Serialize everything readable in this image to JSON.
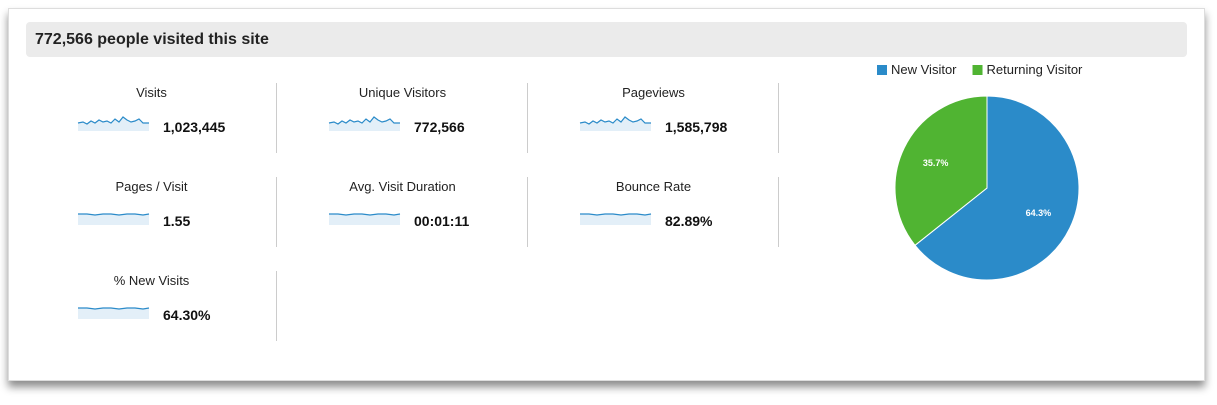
{
  "header": {
    "title": "772,566 people visited this site"
  },
  "metrics": [
    {
      "label": "Visits",
      "value": "1,023,445"
    },
    {
      "label": "Unique Visitors",
      "value": "772,566"
    },
    {
      "label": "Pageviews",
      "value": "1,585,798"
    },
    {
      "label": "Pages / Visit",
      "value": "1.55"
    },
    {
      "label": "Avg. Visit Duration",
      "value": "00:01:11"
    },
    {
      "label": "Bounce Rate",
      "value": "82.89%"
    },
    {
      "label": "% New Visits",
      "value": "64.30%"
    }
  ],
  "chart_data": {
    "type": "pie",
    "categories": [
      "New Visitor",
      "Returning Visitor"
    ],
    "values": [
      64.3,
      35.7
    ],
    "value_labels": [
      "64.3%",
      "35.7%"
    ],
    "colors": [
      "#2b8bc9",
      "#50b432"
    ],
    "legend": "top"
  }
}
